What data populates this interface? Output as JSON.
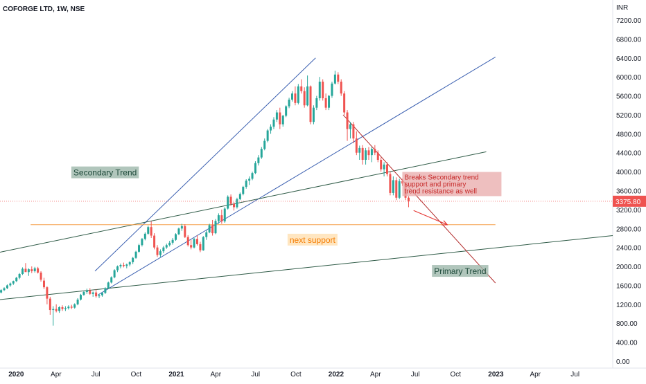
{
  "header": {
    "symbol_line": "COFORGE LTD, 1W, NSE"
  },
  "chart_data": {
    "type": "candlestick",
    "title": "COFORGE LTD, 1W, NSE",
    "currency_label": "INR",
    "y_range": [
      0,
      7400
    ],
    "y_ticks": [
      0,
      400,
      800,
      1200,
      1600,
      2000,
      2400,
      2800,
      3200,
      3600,
      4000,
      4400,
      4800,
      5200,
      5600,
      6000,
      6400,
      6800,
      7200
    ],
    "y_tick_labels": [
      "0.00",
      "400.00",
      "800.00",
      "1200.00",
      "1600.00",
      "2000.00",
      "2400.00",
      "2800.00",
      "3200.00",
      "3600.00",
      "4000.00",
      "4400.00",
      "4800.00",
      "5200.00",
      "5600.00",
      "6000.00",
      "6400.00",
      "6800.00",
      "7200.00"
    ],
    "x_range": [
      "2019-11-25",
      "2023-09-25"
    ],
    "x_ticks": [
      {
        "date": "2020-01-01",
        "label": "2020",
        "bold": true
      },
      {
        "date": "2020-04-01",
        "label": "Apr",
        "bold": false
      },
      {
        "date": "2020-07-01",
        "label": "Jul",
        "bold": false
      },
      {
        "date": "2020-10-01",
        "label": "Oct",
        "bold": false
      },
      {
        "date": "2021-01-01",
        "label": "2021",
        "bold": true
      },
      {
        "date": "2021-04-01",
        "label": "Apr",
        "bold": false
      },
      {
        "date": "2021-07-01",
        "label": "Jul",
        "bold": false
      },
      {
        "date": "2021-10-01",
        "label": "Oct",
        "bold": false
      },
      {
        "date": "2022-01-01",
        "label": "2022",
        "bold": true
      },
      {
        "date": "2022-04-01",
        "label": "Apr",
        "bold": false
      },
      {
        "date": "2022-07-01",
        "label": "Jul",
        "bold": false
      },
      {
        "date": "2022-10-01",
        "label": "Oct",
        "bold": false
      },
      {
        "date": "2023-01-01",
        "label": "2023",
        "bold": true
      },
      {
        "date": "2023-04-01",
        "label": "Apr",
        "bold": false
      },
      {
        "date": "2023-07-01",
        "label": "Jul",
        "bold": false
      }
    ],
    "last_price": 3375.8,
    "last_price_label": "3375.80",
    "colors": {
      "up": "#26a69a",
      "down": "#ef5350",
      "price_tag": "#ef5350"
    },
    "candles": [
      [
        "2019-11-25",
        1450,
        1520,
        1430,
        1500
      ],
      [
        "2019-12-02",
        1500,
        1560,
        1480,
        1540
      ],
      [
        "2019-12-09",
        1540,
        1620,
        1520,
        1600
      ],
      [
        "2019-12-16",
        1600,
        1660,
        1570,
        1640
      ],
      [
        "2019-12-23",
        1640,
        1700,
        1610,
        1690
      ],
      [
        "2019-12-30",
        1690,
        1780,
        1670,
        1760
      ],
      [
        "2020-01-06",
        1760,
        1860,
        1730,
        1840
      ],
      [
        "2020-01-13",
        1840,
        1980,
        1820,
        1950
      ],
      [
        "2020-01-20",
        1950,
        2070,
        1910,
        1880
      ],
      [
        "2020-01-27",
        1880,
        1960,
        1800,
        1940
      ],
      [
        "2020-02-03",
        1940,
        2000,
        1860,
        1900
      ],
      [
        "2020-02-10",
        1900,
        1990,
        1870,
        1960
      ],
      [
        "2020-02-17",
        1960,
        1990,
        1850,
        1870
      ],
      [
        "2020-02-24",
        1870,
        1900,
        1680,
        1720
      ],
      [
        "2020-03-02",
        1700,
        1760,
        1520,
        1560
      ],
      [
        "2020-03-09",
        1560,
        1580,
        1200,
        1320
      ],
      [
        "2020-03-16",
        1320,
        1360,
        980,
        1080
      ],
      [
        "2020-03-23",
        1080,
        1160,
        750,
        1100
      ],
      [
        "2020-03-30",
        1100,
        1200,
        1030,
        1060
      ],
      [
        "2020-04-06",
        1060,
        1160,
        1020,
        1140
      ],
      [
        "2020-04-13",
        1140,
        1180,
        1060,
        1100
      ],
      [
        "2020-04-20",
        1100,
        1160,
        1060,
        1120
      ],
      [
        "2020-04-27",
        1120,
        1180,
        1090,
        1150
      ],
      [
        "2020-05-04",
        1150,
        1190,
        1100,
        1130
      ],
      [
        "2020-05-11",
        1130,
        1220,
        1110,
        1200
      ],
      [
        "2020-05-18",
        1200,
        1330,
        1180,
        1300
      ],
      [
        "2020-05-25",
        1300,
        1420,
        1280,
        1400
      ],
      [
        "2020-06-01",
        1400,
        1480,
        1380,
        1460
      ],
      [
        "2020-06-08",
        1460,
        1530,
        1420,
        1490
      ],
      [
        "2020-06-15",
        1490,
        1540,
        1400,
        1420
      ],
      [
        "2020-06-22",
        1420,
        1470,
        1360,
        1450
      ],
      [
        "2020-06-29",
        1450,
        1520,
        1340,
        1370
      ],
      [
        "2020-07-06",
        1370,
        1420,
        1330,
        1390
      ],
      [
        "2020-07-13",
        1390,
        1460,
        1360,
        1440
      ],
      [
        "2020-07-20",
        1440,
        1560,
        1420,
        1540
      ],
      [
        "2020-07-27",
        1540,
        1680,
        1520,
        1660
      ],
      [
        "2020-08-03",
        1660,
        1790,
        1640,
        1770
      ],
      [
        "2020-08-10",
        1770,
        1940,
        1750,
        1920
      ],
      [
        "2020-08-17",
        1920,
        2020,
        1880,
        2000
      ],
      [
        "2020-08-24",
        2000,
        2060,
        1960,
        2030
      ],
      [
        "2020-08-31",
        2030,
        2080,
        1980,
        2010
      ],
      [
        "2020-09-07",
        2010,
        2060,
        1960,
        2040
      ],
      [
        "2020-09-14",
        2040,
        2110,
        2000,
        2090
      ],
      [
        "2020-09-21",
        2090,
        2200,
        2050,
        2180
      ],
      [
        "2020-09-28",
        2180,
        2330,
        2160,
        2310
      ],
      [
        "2020-10-05",
        2310,
        2480,
        2290,
        2450
      ],
      [
        "2020-10-12",
        2450,
        2600,
        2420,
        2580
      ],
      [
        "2020-10-19",
        2580,
        2720,
        2550,
        2690
      ],
      [
        "2020-10-26",
        2690,
        2860,
        2670,
        2830
      ],
      [
        "2020-11-02",
        2830,
        2950,
        2600,
        2650
      ],
      [
        "2020-11-09",
        2650,
        2700,
        2360,
        2400
      ],
      [
        "2020-11-16",
        2400,
        2450,
        2200,
        2240
      ],
      [
        "2020-11-23",
        2240,
        2360,
        2200,
        2320
      ],
      [
        "2020-11-30",
        2320,
        2430,
        2280,
        2400
      ],
      [
        "2020-12-07",
        2400,
        2480,
        2370,
        2450
      ],
      [
        "2020-12-14",
        2450,
        2540,
        2420,
        2500
      ],
      [
        "2020-12-21",
        2500,
        2600,
        2460,
        2560
      ],
      [
        "2020-12-28",
        2560,
        2700,
        2540,
        2680
      ],
      [
        "2021-01-04",
        2680,
        2820,
        2660,
        2800
      ],
      [
        "2021-01-11",
        2800,
        2900,
        2750,
        2850
      ],
      [
        "2021-01-18",
        2850,
        2890,
        2600,
        2620
      ],
      [
        "2021-01-25",
        2620,
        2660,
        2420,
        2450
      ],
      [
        "2021-02-01",
        2450,
        2560,
        2360,
        2400
      ],
      [
        "2021-02-08",
        2400,
        2600,
        2380,
        2580
      ],
      [
        "2021-02-15",
        2580,
        2660,
        2440,
        2470
      ],
      [
        "2021-02-22",
        2470,
        2520,
        2300,
        2340
      ],
      [
        "2021-03-01",
        2340,
        2640,
        2330,
        2620
      ],
      [
        "2021-03-08",
        2620,
        2760,
        2560,
        2720
      ],
      [
        "2021-03-15",
        2720,
        2900,
        2700,
        2870
      ],
      [
        "2021-03-22",
        2870,
        2980,
        2650,
        2700
      ],
      [
        "2021-03-29",
        2700,
        3000,
        2680,
        2960
      ],
      [
        "2021-04-05",
        2960,
        3120,
        2900,
        3080
      ],
      [
        "2021-04-12",
        3080,
        3200,
        2900,
        2950
      ],
      [
        "2021-04-19",
        2950,
        3250,
        2920,
        3220
      ],
      [
        "2021-04-26",
        3220,
        3500,
        3200,
        3470
      ],
      [
        "2021-05-03",
        3470,
        3520,
        3280,
        3320
      ],
      [
        "2021-05-10",
        3320,
        3360,
        3180,
        3250
      ],
      [
        "2021-05-17",
        3250,
        3450,
        3220,
        3420
      ],
      [
        "2021-05-24",
        3420,
        3560,
        3400,
        3530
      ],
      [
        "2021-05-31",
        3530,
        3700,
        3500,
        3680
      ],
      [
        "2021-06-07",
        3680,
        3840,
        3640,
        3810
      ],
      [
        "2021-06-14",
        3810,
        3900,
        3720,
        3850
      ],
      [
        "2021-06-21",
        3850,
        4000,
        3820,
        3970
      ],
      [
        "2021-06-28",
        3970,
        4220,
        3950,
        4180
      ],
      [
        "2021-07-05",
        4180,
        4350,
        4130,
        4300
      ],
      [
        "2021-07-12",
        4300,
        4520,
        4270,
        4480
      ],
      [
        "2021-07-19",
        4480,
        4700,
        4450,
        4650
      ],
      [
        "2021-07-26",
        4650,
        4900,
        4620,
        4870
      ],
      [
        "2021-08-02",
        4870,
        5000,
        4800,
        4950
      ],
      [
        "2021-08-09",
        4950,
        5150,
        4900,
        5100
      ],
      [
        "2021-08-16",
        5100,
        5300,
        5050,
        5250
      ],
      [
        "2021-08-23",
        5250,
        5350,
        4900,
        5000
      ],
      [
        "2021-08-30",
        5000,
        5200,
        4950,
        5180
      ],
      [
        "2021-09-06",
        5180,
        5400,
        5150,
        5380
      ],
      [
        "2021-09-13",
        5380,
        5560,
        5340,
        5520
      ],
      [
        "2021-09-20",
        5520,
        5700,
        5480,
        5650
      ],
      [
        "2021-09-27",
        5650,
        5800,
        5400,
        5450
      ],
      [
        "2021-10-04",
        5450,
        5850,
        5420,
        5800
      ],
      [
        "2021-10-11",
        5800,
        5950,
        5650,
        5700
      ],
      [
        "2021-10-18",
        5700,
        5780,
        5350,
        5400
      ],
      [
        "2021-10-25",
        5400,
        6030,
        5380,
        5800
      ],
      [
        "2021-11-01",
        5800,
        5820,
        5000,
        5050
      ],
      [
        "2021-11-08",
        5050,
        5400,
        5000,
        5350
      ],
      [
        "2021-11-15",
        5350,
        5600,
        5300,
        5550
      ],
      [
        "2021-11-22",
        5550,
        6000,
        5500,
        5900
      ],
      [
        "2021-11-29",
        5900,
        5950,
        5500,
        5550
      ],
      [
        "2021-12-06",
        5550,
        5650,
        5300,
        5350
      ],
      [
        "2021-12-13",
        5350,
        5620,
        5300,
        5600
      ],
      [
        "2021-12-20",
        5600,
        5900,
        5560,
        5860
      ],
      [
        "2021-12-27",
        5860,
        6130,
        5840,
        6050
      ],
      [
        "2022-01-03",
        6050,
        6100,
        5850,
        5900
      ],
      [
        "2022-01-10",
        5900,
        5950,
        5600,
        5650
      ],
      [
        "2022-01-17",
        5650,
        5700,
        5200,
        5250
      ],
      [
        "2022-01-24",
        5250,
        5300,
        4650,
        4900
      ],
      [
        "2022-01-31",
        4900,
        5050,
        4700,
        5000
      ],
      [
        "2022-02-07",
        5000,
        5050,
        4600,
        4700
      ],
      [
        "2022-02-14",
        4700,
        4850,
        4350,
        4400
      ],
      [
        "2022-02-21",
        4400,
        4550,
        4250,
        4500
      ],
      [
        "2022-02-28",
        4500,
        4560,
        4150,
        4250
      ],
      [
        "2022-03-07",
        4250,
        4500,
        4150,
        4450
      ],
      [
        "2022-03-14",
        4450,
        4520,
        4250,
        4350
      ],
      [
        "2022-03-21",
        4350,
        4520,
        4200,
        4480
      ],
      [
        "2022-03-28",
        4480,
        4560,
        4350,
        4400
      ],
      [
        "2022-04-04",
        4400,
        4450,
        4200,
        4250
      ],
      [
        "2022-04-11",
        4250,
        4300,
        4000,
        4050
      ],
      [
        "2022-04-18",
        4050,
        4200,
        3900,
        4150
      ],
      [
        "2022-04-25",
        4150,
        4200,
        3900,
        3950
      ],
      [
        "2022-05-02",
        3950,
        4000,
        3500,
        3550
      ],
      [
        "2022-05-09",
        3550,
        3900,
        3500,
        3820
      ],
      [
        "2022-05-16",
        3820,
        3880,
        3400,
        3450
      ],
      [
        "2022-05-23",
        3450,
        3850,
        3420,
        3800
      ],
      [
        "2022-05-30",
        3800,
        3850,
        3700,
        3750
      ],
      [
        "2022-06-06",
        3750,
        3780,
        3400,
        3450
      ],
      [
        "2022-06-13",
        3450,
        3480,
        3250,
        3376
      ]
    ],
    "drawings": [
      {
        "name": "secondary-trend-support",
        "color": "#3a5fb0",
        "p1": [
          "2020-07-06",
          1400
        ],
        "p2": [
          "2022-12-31",
          6420
        ]
      },
      {
        "name": "channel-upper",
        "color": "#3a5fb0",
        "p1": [
          "2020-06-29",
          1900
        ],
        "p2": [
          "2021-11-15",
          6400
        ]
      },
      {
        "name": "primary-trend-line",
        "color": "#2e5a46",
        "p1": [
          "2019-11-25",
          1300
        ],
        "p2": [
          "2023-09-25",
          2650
        ]
      },
      {
        "name": "upper-trend-line",
        "color": "#2e5a46",
        "p1": [
          "2019-11-25",
          2300
        ],
        "p2": [
          "2022-12-10",
          4420
        ]
      },
      {
        "name": "downtrend-line",
        "color": "#b22a2a",
        "p1": [
          "2022-01-17",
          5200
        ],
        "p2": [
          "2022-12-31",
          1650
        ]
      },
      {
        "name": "next-support-line",
        "color": "#f5a04b",
        "p1": [
          "2020-02-03",
          2880
        ],
        "p2": [
          "2022-12-31",
          2880
        ]
      }
    ],
    "arrow": {
      "color": "#e53935",
      "from": [
        "2022-06-27",
        3180
      ],
      "to": [
        "2022-09-12",
        2880
      ]
    },
    "annotations": [
      {
        "key": "secondary_trend",
        "text": "Secondary Trend",
        "bg": "#9eb8ab",
        "fg": "#1e4a3a",
        "at": [
          "2020-05-06",
          4080
        ]
      },
      {
        "key": "next_support",
        "text": "next support",
        "bg": "#ffe0b2",
        "fg": "#f57c00",
        "at": [
          "2021-09-12",
          2660
        ]
      },
      {
        "key": "primary_trend",
        "text": "Primary Trend",
        "bg": "#9eb8ab",
        "fg": "#1e4a3a",
        "at": [
          "2022-08-08",
          2000
        ]
      },
      {
        "key": "breaks_note",
        "text": "Breaks Secondary trend support and primary trend resistance as well",
        "bg": "#e8a9a9",
        "fg": "#c62828",
        "at": [
          "2022-06-06",
          3980
        ]
      }
    ]
  }
}
